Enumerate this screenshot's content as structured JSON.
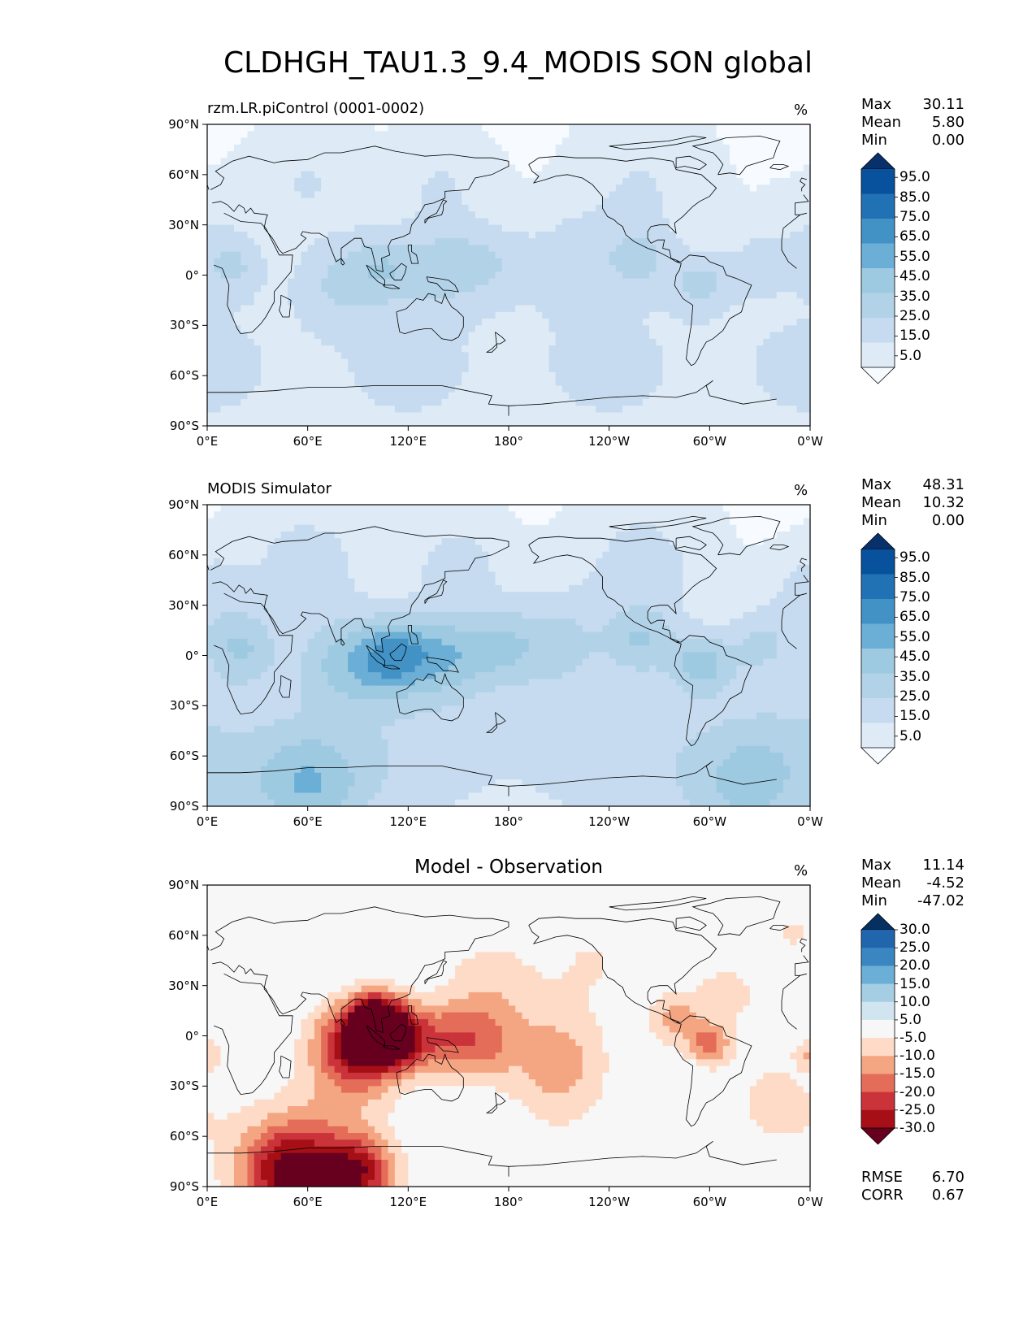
{
  "figure_title": "CLDHGH_TAU1.3_9.4_MODIS SON global",
  "colors": {
    "seq_blues": [
      "#f7fbff",
      "#deebf7",
      "#c6dbef",
      "#b2d2e8",
      "#9ecae1",
      "#6baed6",
      "#4292c6",
      "#2171b5",
      "#08519c",
      "#08306b"
    ],
    "diverging": [
      "#67001f",
      "#a50f15",
      "#cb333b",
      "#e46d59",
      "#f4a582",
      "#fddbc7",
      "#f7f7f7",
      "#d1e5f0",
      "#a6cee3",
      "#6baed6",
      "#3a86c0",
      "#2166ac",
      "#053061"
    ],
    "coastline": "#000000"
  },
  "axes": {
    "y_ticks": [
      "90°N",
      "60°N",
      "30°N",
      "0°",
      "30°S",
      "60°S",
      "90°S"
    ],
    "x_ticks": [
      "0°E",
      "60°E",
      "120°E",
      "180°",
      "120°W",
      "60°W",
      "0°W"
    ]
  },
  "panels": [
    {
      "id": "test",
      "title_left": "rzm.LR.piControl (0001-0002)",
      "title_center": "",
      "units": "%",
      "stats": [
        {
          "label": "Max",
          "value": "30.11"
        },
        {
          "label": "Mean",
          "value": "5.80"
        },
        {
          "label": "Min",
          "value": "0.00"
        }
      ],
      "colorbar": {
        "labels": [
          "95.0",
          "85.0",
          "75.0",
          "65.0",
          "55.0",
          "45.0",
          "35.0",
          "25.0",
          "15.0",
          "5.0"
        ]
      },
      "metrics": []
    },
    {
      "id": "reference",
      "title_left": "MODIS Simulator",
      "title_center": "",
      "units": "%",
      "stats": [
        {
          "label": "Max",
          "value": "48.31"
        },
        {
          "label": "Mean",
          "value": "10.32"
        },
        {
          "label": "Min",
          "value": "0.00"
        }
      ],
      "colorbar": {
        "labels": [
          "95.0",
          "85.0",
          "75.0",
          "65.0",
          "55.0",
          "45.0",
          "35.0",
          "25.0",
          "15.0",
          "5.0"
        ]
      },
      "metrics": []
    },
    {
      "id": "diff",
      "title_left": "",
      "title_center": "Model - Observation",
      "units": "%",
      "stats": [
        {
          "label": "Max",
          "value": "11.14"
        },
        {
          "label": "Mean",
          "value": "-4.52"
        },
        {
          "label": "Min",
          "value": "-47.02"
        }
      ],
      "colorbar": {
        "labels": [
          "30.0",
          "25.0",
          "20.0",
          "15.0",
          "10.0",
          "5.0",
          "-5.0",
          "-10.0",
          "-15.0",
          "-20.0",
          "-25.0",
          "-30.0"
        ]
      },
      "metrics": [
        {
          "label": "RMSE",
          "value": "6.70"
        },
        {
          "label": "CORR",
          "value": "0.67"
        }
      ]
    }
  ]
}
